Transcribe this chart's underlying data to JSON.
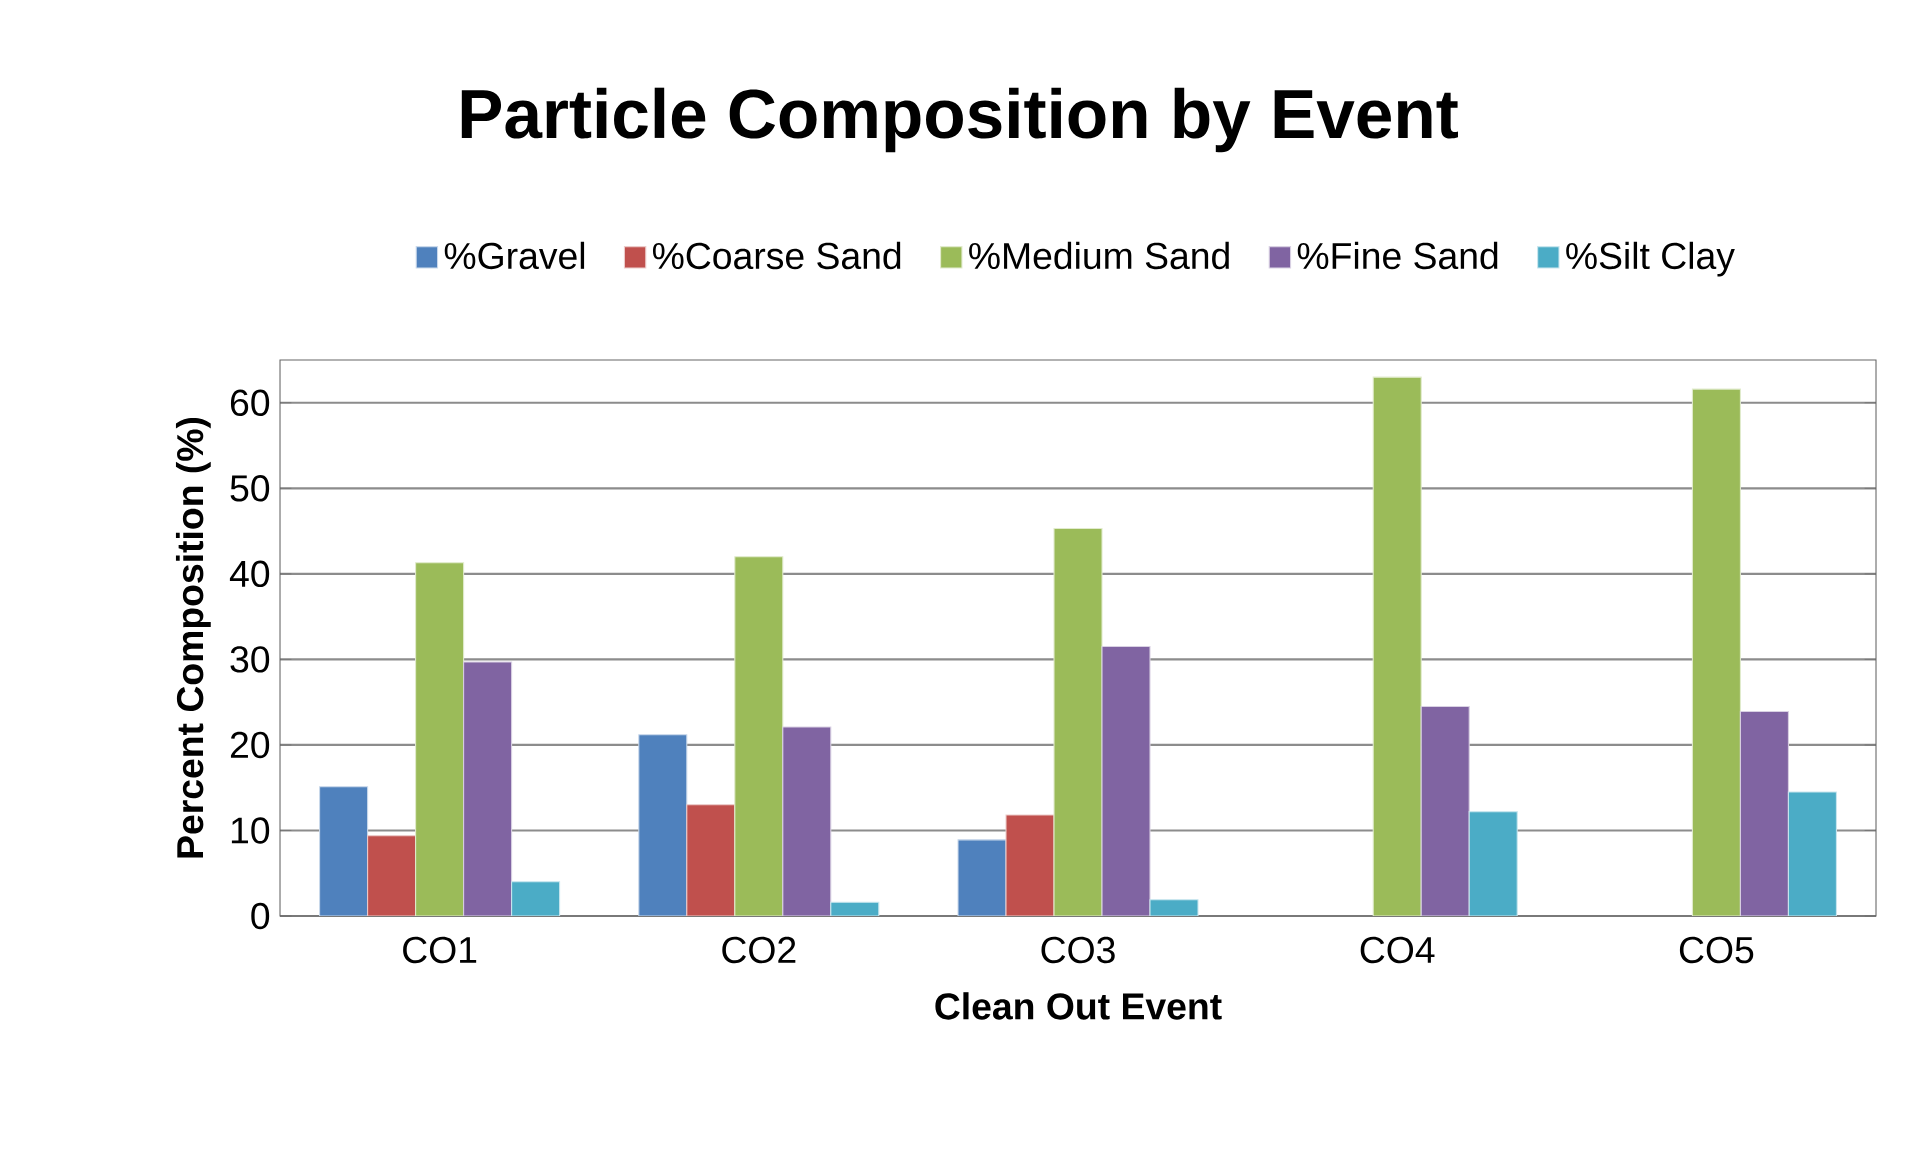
{
  "chart_data": {
    "type": "bar",
    "title": "Particle Composition by Event",
    "xlabel": "Clean Out Event",
    "ylabel": "Percent Composition  (%)",
    "categories": [
      "CO1",
      "CO2",
      "CO3",
      "CO4",
      "CO5"
    ],
    "series": [
      {
        "name": "%Gravel",
        "color": "#4f81bd",
        "values": [
          15.1,
          21.2,
          8.9,
          null,
          null
        ]
      },
      {
        "name": "%Coarse Sand",
        "color": "#c0504d",
        "values": [
          9.4,
          13.0,
          11.8,
          null,
          null
        ]
      },
      {
        "name": "%Medium Sand",
        "color": "#9bbb59",
        "values": [
          41.3,
          42.0,
          45.3,
          63.0,
          61.6
        ]
      },
      {
        "name": "%Fine Sand",
        "color": "#8064a2",
        "values": [
          29.7,
          22.1,
          31.5,
          24.5,
          23.9
        ]
      },
      {
        "name": "%Silt Clay",
        "color": "#4bacc6",
        "values": [
          4.0,
          1.6,
          1.9,
          12.2,
          14.5
        ]
      }
    ],
    "ylim": [
      0,
      65
    ],
    "yticks": [
      0,
      10,
      20,
      30,
      40,
      50,
      60
    ],
    "grid": "y",
    "legend": "top"
  }
}
